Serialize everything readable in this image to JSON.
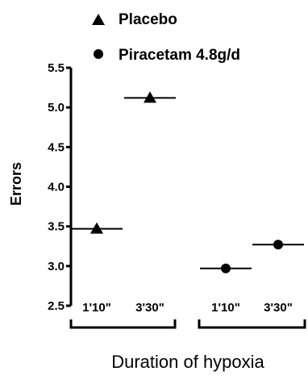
{
  "chart_data": {
    "type": "scatter",
    "title": "",
    "ylabel": "Errors",
    "xlabel": "Duration of hypoxia",
    "ylim": [
      2.5,
      5.5
    ],
    "yticks": [
      "2.5",
      "3.0",
      "3.5",
      "4.0",
      "4.5",
      "5.0",
      "5.5"
    ],
    "categories": [
      "1'10\"",
      "3'30\"",
      "1'10\"",
      "3'30\""
    ],
    "legend_position": "top",
    "series": [
      {
        "name": "Placebo",
        "marker": "triangle",
        "categories": [
          "1'10\"",
          "3'30\""
        ],
        "values": [
          3.47,
          5.12
        ]
      },
      {
        "name": "Piracetam 4.8g/d",
        "marker": "circle",
        "categories": [
          "1'10\"",
          "3'30\""
        ],
        "values": [
          2.97,
          3.27
        ]
      }
    ],
    "colors": {
      "marker": "#000000",
      "axis": "#000000"
    }
  }
}
